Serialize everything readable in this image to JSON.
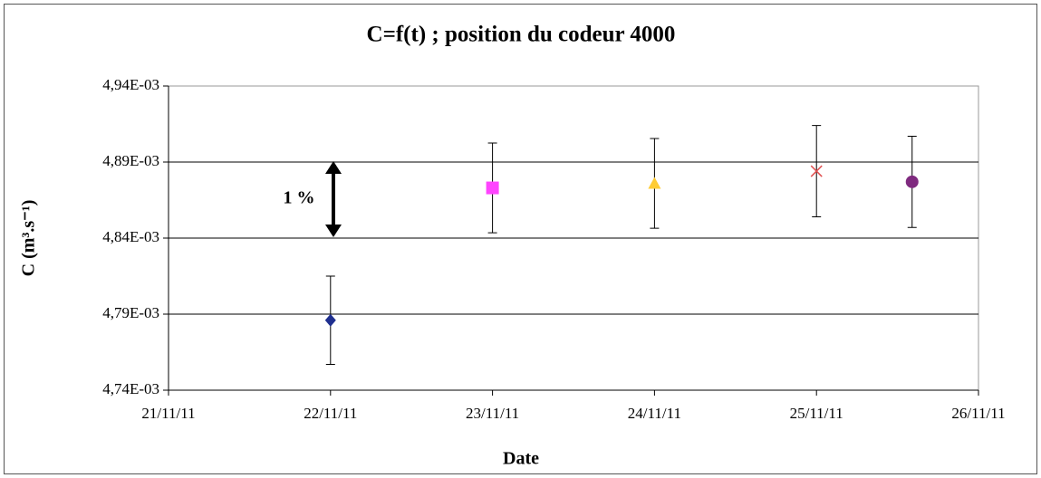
{
  "chart_data": {
    "type": "scatter",
    "title": "C=f(t) ; position du codeur 4000",
    "xlabel": "Date",
    "ylabel": "C (m³.s⁻¹)",
    "annotation": "1 %",
    "xlim": [
      "2011-11-21",
      "2011-11-26"
    ],
    "xticks": [
      {
        "value": "2011-11-21",
        "label": "21/11/11"
      },
      {
        "value": "2011-11-22",
        "label": "22/11/11"
      },
      {
        "value": "2011-11-23",
        "label": "23/11/11"
      },
      {
        "value": "2011-11-24",
        "label": "24/11/11"
      },
      {
        "value": "2011-11-25",
        "label": "25/11/11"
      },
      {
        "value": "2011-11-26",
        "label": "26/11/11"
      }
    ],
    "ylim": [
      0.00474,
      0.00494
    ],
    "yticks": [
      {
        "value": 0.00474,
        "label": "4,74E-03"
      },
      {
        "value": 0.00479,
        "label": "4,79E-03"
      },
      {
        "value": 0.00484,
        "label": "4,84E-03"
      },
      {
        "value": 0.00489,
        "label": "4,89E-03"
      },
      {
        "value": 0.00494,
        "label": "4,94E-03"
      }
    ],
    "grid": true,
    "series": [
      {
        "color": "#1f2f8f",
        "marker": "diamond",
        "x": [
          "2011-11-22"
        ],
        "values": [
          0.004786
        ],
        "errors": [
          2.9e-05
        ]
      },
      {
        "color": "#ff44ff",
        "marker": "square",
        "x": [
          "2011-11-23"
        ],
        "values": [
          0.004873
        ],
        "errors": [
          2.95e-05
        ]
      },
      {
        "color": "#ffcc33",
        "marker": "triangle",
        "x": [
          "2011-11-24"
        ],
        "values": [
          0.004876
        ],
        "errors": [
          2.95e-05
        ]
      },
      {
        "color": "#e05050",
        "marker": "cross",
        "x": [
          "2011-11-25"
        ],
        "values": [
          0.004884
        ],
        "errors": [
          3e-05
        ]
      },
      {
        "color": "#7f2a7f",
        "marker": "circle",
        "x": [
          "2011-11-25T14:10"
        ],
        "values": [
          0.004877
        ],
        "errors": [
          3e-05
        ]
      }
    ]
  }
}
